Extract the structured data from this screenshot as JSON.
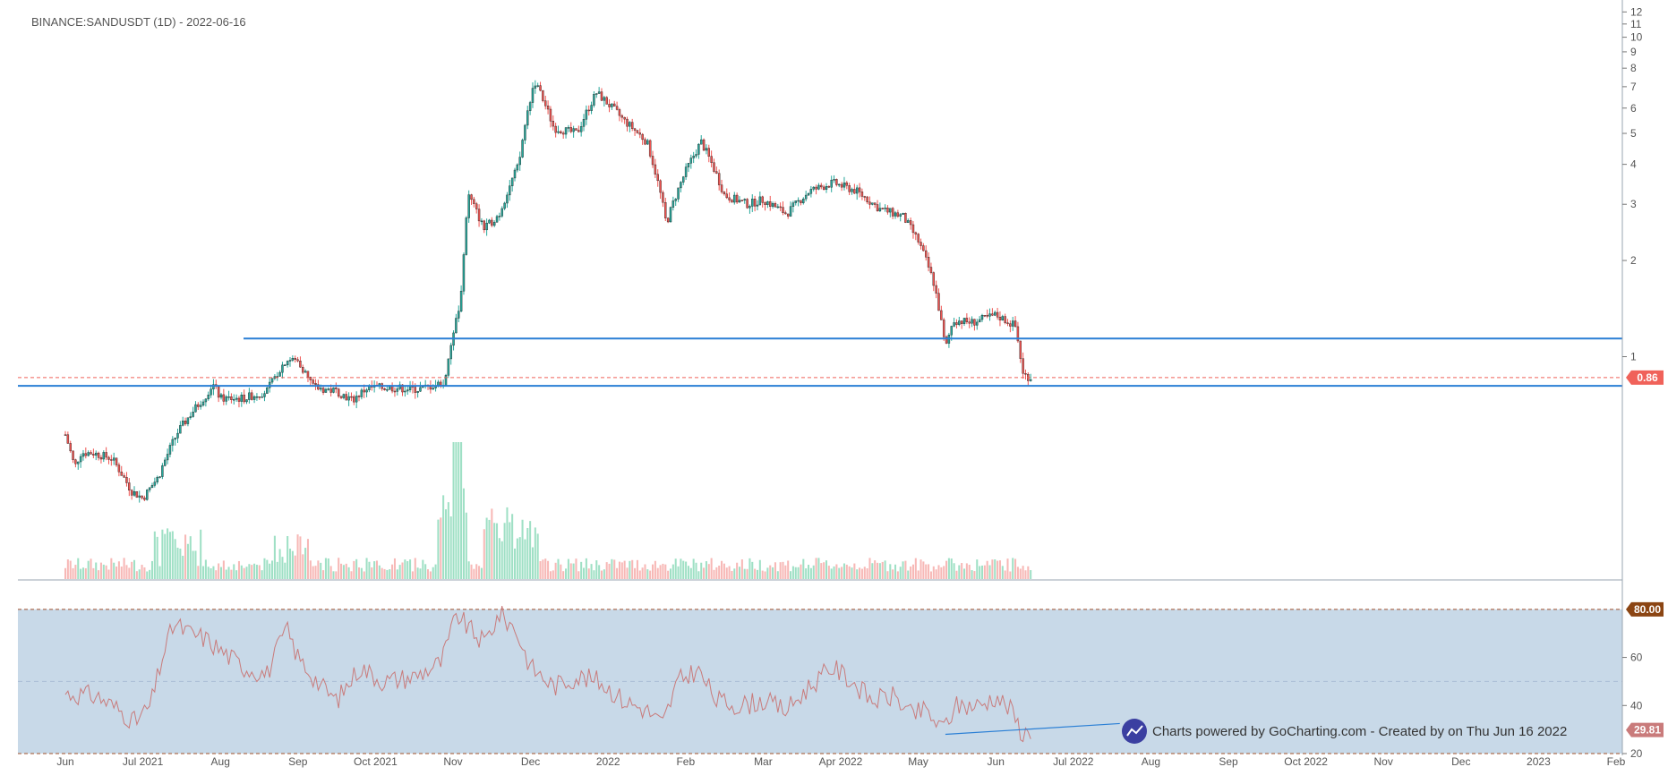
{
  "chart_data": {
    "type": "candlestick",
    "title": "BINANCE:SANDUSDT (1D) - 2022-06-16",
    "symbol": "BINANCE:SANDUSDT",
    "interval": "1D",
    "date": "2022-06-16",
    "price_scale": "log",
    "price_ticks": [
      "12",
      "11",
      "10",
      "9",
      "8",
      "7",
      "6",
      "5",
      "4",
      "3",
      "2",
      "1"
    ],
    "price_tick_values": [
      12,
      11,
      10,
      9,
      8,
      7,
      6,
      5,
      4,
      3,
      2,
      1
    ],
    "ylim": [
      0.2,
      12.5
    ],
    "x_tick_labels": [
      "Jun",
      "Jul 2021",
      "Aug",
      "Sep",
      "Oct 2021",
      "Nov",
      "Dec",
      "2022",
      "Feb",
      "Mar",
      "Apr 2022",
      "May",
      "Jun",
      "Jul 2022",
      "Aug",
      "Sep",
      "Oct 2022",
      "Nov",
      "Dec",
      "2023",
      "Feb"
    ],
    "x_tick_index": [
      0,
      1,
      2,
      3,
      4,
      5,
      6,
      7,
      8,
      9,
      10,
      11,
      12,
      13,
      14,
      15,
      16,
      17,
      18,
      19,
      20
    ],
    "price_anchors": [
      {
        "t": 0,
        "p": 0.57
      },
      {
        "t": 0.12,
        "p": 0.45
      },
      {
        "t": 0.2,
        "p": 0.5
      },
      {
        "t": 0.35,
        "p": 0.5
      },
      {
        "t": 0.6,
        "p": 0.48
      },
      {
        "t": 0.85,
        "p": 0.38
      },
      {
        "t": 1.0,
        "p": 0.36
      },
      {
        "t": 1.2,
        "p": 0.42
      },
      {
        "t": 1.45,
        "p": 0.58
      },
      {
        "t": 1.8,
        "p": 0.75
      },
      {
        "t": 1.9,
        "p": 0.82
      },
      {
        "t": 2.0,
        "p": 0.74
      },
      {
        "t": 2.3,
        "p": 0.74
      },
      {
        "t": 2.6,
        "p": 0.78
      },
      {
        "t": 2.85,
        "p": 0.98
      },
      {
        "t": 3.0,
        "p": 0.97
      },
      {
        "t": 3.2,
        "p": 0.8
      },
      {
        "t": 3.5,
        "p": 0.78
      },
      {
        "t": 3.7,
        "p": 0.73
      },
      {
        "t": 3.9,
        "p": 0.8
      },
      {
        "t": 4.2,
        "p": 0.8
      },
      {
        "t": 4.55,
        "p": 0.79
      },
      {
        "t": 4.9,
        "p": 0.83
      },
      {
        "t": 5.1,
        "p": 1.5
      },
      {
        "t": 5.2,
        "p": 3.2
      },
      {
        "t": 5.4,
        "p": 2.5
      },
      {
        "t": 5.6,
        "p": 2.8
      },
      {
        "t": 5.85,
        "p": 4.0
      },
      {
        "t": 6.05,
        "p": 7.3
      },
      {
        "t": 6.3,
        "p": 5.2
      },
      {
        "t": 6.6,
        "p": 5.0
      },
      {
        "t": 6.85,
        "p": 6.7
      },
      {
        "t": 7.2,
        "p": 5.5
      },
      {
        "t": 7.5,
        "p": 4.7
      },
      {
        "t": 7.75,
        "p": 2.6
      },
      {
        "t": 8.0,
        "p": 3.8
      },
      {
        "t": 8.2,
        "p": 4.7
      },
      {
        "t": 8.5,
        "p": 3.2
      },
      {
        "t": 8.8,
        "p": 3.0
      },
      {
        "t": 9.0,
        "p": 3.1
      },
      {
        "t": 9.3,
        "p": 2.8
      },
      {
        "t": 9.6,
        "p": 3.3
      },
      {
        "t": 9.9,
        "p": 3.5
      },
      {
        "t": 10.2,
        "p": 3.3
      },
      {
        "t": 10.5,
        "p": 2.9
      },
      {
        "t": 10.8,
        "p": 2.75
      },
      {
        "t": 11.0,
        "p": 2.3
      },
      {
        "t": 11.2,
        "p": 1.7
      },
      {
        "t": 11.35,
        "p": 1.05
      },
      {
        "t": 11.45,
        "p": 1.3
      },
      {
        "t": 11.7,
        "p": 1.28
      },
      {
        "t": 12.0,
        "p": 1.35
      },
      {
        "t": 12.25,
        "p": 1.25
      },
      {
        "t": 12.35,
        "p": 0.88
      },
      {
        "t": 12.45,
        "p": 0.86
      }
    ],
    "last_price_label": "0.86",
    "horizontal_levels": [
      {
        "name": "resistance",
        "value": 1.14
      },
      {
        "name": "support",
        "value": 0.81
      }
    ],
    "volume": {
      "description": "daily volume bars, spikes near early Nov 2021 and late Nov 2021"
    },
    "rsi": {
      "ylim": [
        20,
        90
      ],
      "ticks": [
        "80",
        "60",
        "40",
        "20"
      ],
      "tick_values": [
        80,
        60,
        40,
        20
      ],
      "upper_band": 80,
      "upper_band_label": "80.00",
      "mid_line": 50,
      "lower_band": 20,
      "last_value": 29.81,
      "last_value_label": "29.81",
      "series_anchors": [
        {
          "t": 0,
          "v": 45
        },
        {
          "t": 0.4,
          "v": 44
        },
        {
          "t": 0.7,
          "v": 38
        },
        {
          "t": 0.9,
          "v": 33
        },
        {
          "t": 1.1,
          "v": 40
        },
        {
          "t": 1.25,
          "v": 60
        },
        {
          "t": 1.4,
          "v": 74
        },
        {
          "t": 1.6,
          "v": 70
        },
        {
          "t": 1.8,
          "v": 68
        },
        {
          "t": 2.0,
          "v": 63
        },
        {
          "t": 2.3,
          "v": 56
        },
        {
          "t": 2.6,
          "v": 53
        },
        {
          "t": 2.85,
          "v": 72
        },
        {
          "t": 3.0,
          "v": 60
        },
        {
          "t": 3.3,
          "v": 48
        },
        {
          "t": 3.5,
          "v": 42
        },
        {
          "t": 3.8,
          "v": 56
        },
        {
          "t": 4.1,
          "v": 50
        },
        {
          "t": 4.5,
          "v": 52
        },
        {
          "t": 4.85,
          "v": 58
        },
        {
          "t": 5.05,
          "v": 78
        },
        {
          "t": 5.2,
          "v": 72
        },
        {
          "t": 5.4,
          "v": 66
        },
        {
          "t": 5.6,
          "v": 78
        },
        {
          "t": 5.8,
          "v": 72
        },
        {
          "t": 6.0,
          "v": 56
        },
        {
          "t": 6.3,
          "v": 48
        },
        {
          "t": 6.6,
          "v": 52
        },
        {
          "t": 6.9,
          "v": 50
        },
        {
          "t": 7.2,
          "v": 42
        },
        {
          "t": 7.5,
          "v": 38
        },
        {
          "t": 7.7,
          "v": 32
        },
        {
          "t": 7.9,
          "v": 50
        },
        {
          "t": 8.15,
          "v": 55
        },
        {
          "t": 8.4,
          "v": 42
        },
        {
          "t": 8.7,
          "v": 40
        },
        {
          "t": 9.0,
          "v": 42
        },
        {
          "t": 9.3,
          "v": 38
        },
        {
          "t": 9.6,
          "v": 48
        },
        {
          "t": 9.9,
          "v": 56
        },
        {
          "t": 10.15,
          "v": 50
        },
        {
          "t": 10.4,
          "v": 42
        },
        {
          "t": 10.7,
          "v": 44
        },
        {
          "t": 10.9,
          "v": 36
        },
        {
          "t": 11.1,
          "v": 38
        },
        {
          "t": 11.3,
          "v": 30
        },
        {
          "t": 11.5,
          "v": 40
        },
        {
          "t": 11.8,
          "v": 40
        },
        {
          "t": 12.0,
          "v": 44
        },
        {
          "t": 12.2,
          "v": 38
        },
        {
          "t": 12.35,
          "v": 28
        },
        {
          "t": 12.45,
          "v": 29.81
        }
      ],
      "trendline": [
        {
          "t": 11.35,
          "v": 28
        },
        {
          "t": 13.6,
          "v": 32.5
        }
      ]
    },
    "colors": {
      "up": "#26a69a",
      "down": "#ef5350",
      "wick": "#333333",
      "vol_up": "#9fe0c5",
      "vol_down": "#f7b8b6",
      "level": "#2a7fd5",
      "last_price": "#f0625a",
      "rsi_fill": "#c8d9e8",
      "rsi_line": "#c97b7b",
      "rsi_upper": "#a0522d",
      "rsi_upper_badge": "#8b4513",
      "rsi_last_badge": "#c97b7b",
      "rsi_trend": "#2a7fd5",
      "watermark": "#3b3fa1"
    }
  },
  "watermark": {
    "icon": "trend-line-icon",
    "text": "Charts powered by GoCharting.com - Created by  on Thu Jun 16 2022"
  }
}
